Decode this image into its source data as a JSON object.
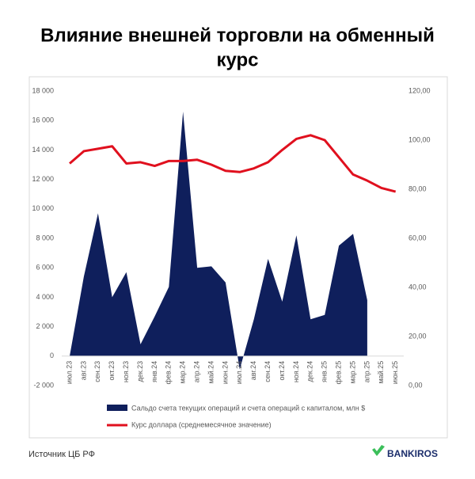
{
  "chart_data": {
    "type": "area_line",
    "title": "Влияние внешней торговли на обменный курс",
    "categories": [
      "июл.23",
      "авг.23",
      "сен.23",
      "окт.23",
      "ноя.23",
      "дек.23",
      "янв.24",
      "фев.24",
      "мар.24",
      "апр.24",
      "май.24",
      "июн.24",
      "июл.24",
      "авг.24",
      "сен.24",
      "окт.24",
      "ноя.24",
      "дек.24",
      "янв.25",
      "фев.25",
      "мар.25",
      "апр.25",
      "май.25",
      "июн.25"
    ],
    "series": [
      {
        "name": "Сальдо счета текущих операций и счета операций с капиталом, млн $",
        "type": "area",
        "color": "#0f1f5c",
        "values": [
          0,
          5400,
          9700,
          4000,
          5700,
          800,
          2700,
          4700,
          16600,
          6000,
          6100,
          5000,
          -900,
          2500,
          6600,
          3700,
          8200,
          2500,
          2800,
          7500,
          8300,
          3800,
          null,
          null
        ]
      },
      {
        "name": "Курс доллара (среднемесячное значение)",
        "type": "line",
        "axis": "y2",
        "color": "#e0101e",
        "values": [
          90.5,
          95.5,
          96.5,
          97.5,
          90.5,
          91,
          89.5,
          91.5,
          91.5,
          92,
          90,
          87.5,
          87,
          88.5,
          91,
          96,
          100.5,
          102,
          100,
          93,
          86,
          83.5,
          80.5,
          79
        ]
      }
    ],
    "ylim": [
      -2000,
      18000
    ],
    "yticks": [
      {
        "value": -2000,
        "label": "-2 000"
      },
      0,
      {
        "value": 2000,
        "label": "2 000"
      },
      {
        "value": 4000,
        "label": "4 000"
      },
      {
        "value": 6000,
        "label": "6 000"
      },
      {
        "value": 8000,
        "label": "8 000"
      },
      {
        "value": 10000,
        "label": "10 000"
      },
      {
        "value": 12000,
        "label": "12 000"
      },
      {
        "value": 14000,
        "label": "14 000"
      },
      {
        "value": 16000,
        "label": "16 000"
      },
      {
        "value": 18000,
        "label": "18 000"
      }
    ],
    "y2lim": [
      0,
      120
    ],
    "y2ticks": [
      {
        "value": 0,
        "label": "0,00"
      },
      {
        "value": 20,
        "label": "20,00"
      },
      {
        "value": 40,
        "label": "40,00"
      },
      {
        "value": 60,
        "label": "60,00"
      },
      {
        "value": 80,
        "label": "80,00"
      },
      {
        "value": 100,
        "label": "100,00"
      },
      {
        "value": 120,
        "label": "120,00"
      }
    ],
    "legend": "bottom"
  },
  "footer": {
    "source": "Источник ЦБ РФ",
    "brand": "BANKIROS"
  }
}
